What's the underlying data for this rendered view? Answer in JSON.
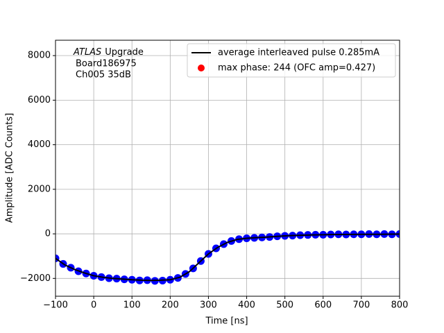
{
  "chart_data": {
    "type": "line",
    "xlabel": "Time [ns]",
    "ylabel": "Amplitude [ADC Counts]",
    "annotation": {
      "italic": "ATLAS",
      "lines": [
        "Upgrade",
        "Board186975",
        "Ch005 35dB"
      ]
    },
    "xlim": [
      -100,
      800
    ],
    "ylim": [
      -2800,
      8690
    ],
    "xticks": [
      {
        "value": -100,
        "label": "−100"
      },
      0,
      100,
      200,
      300,
      400,
      500,
      600,
      700,
      800
    ],
    "yticks": [
      {
        "value": -2000,
        "label": "−2000"
      },
      0,
      2000,
      4000,
      6000,
      8000
    ],
    "grid": true,
    "legend": "upper right",
    "samples": {
      "color": "#0000ff",
      "x": [
        -100,
        -80,
        -60,
        -40,
        -20,
        0,
        20,
        40,
        60,
        80,
        100,
        120,
        140,
        160,
        180,
        200,
        220,
        240,
        260,
        280,
        300,
        320,
        340,
        360,
        380,
        400,
        420,
        440,
        460,
        480,
        500,
        520,
        540,
        560,
        580,
        600,
        620,
        640,
        660,
        680,
        700,
        720,
        740,
        760,
        780,
        800
      ],
      "values": [
        -1100,
        -1350,
        -1520,
        -1680,
        -1780,
        -1880,
        -1940,
        -1990,
        -2010,
        -2040,
        -2060,
        -2090,
        -2080,
        -2110,
        -2100,
        -2060,
        -1980,
        -1800,
        -1550,
        -1220,
        -900,
        -650,
        -460,
        -320,
        -240,
        -200,
        -180,
        -160,
        -140,
        -110,
        -90,
        -80,
        -60,
        -50,
        -40,
        -40,
        -30,
        -20,
        -30,
        -20,
        -20,
        -10,
        -20,
        -10,
        -20,
        -10
      ]
    },
    "series": [
      {
        "name": "average interleaved pulse 0.285mA",
        "color": "#000000",
        "kind": "line",
        "x": [
          -100,
          -75,
          -50,
          -25,
          0,
          25,
          50,
          75,
          100,
          125,
          150,
          175,
          200,
          225,
          250,
          275,
          300,
          325,
          350,
          375,
          400,
          425,
          450,
          475,
          500,
          525,
          550,
          575,
          600,
          625,
          650,
          675,
          700,
          725,
          750,
          775,
          800
        ],
        "values": [
          -1100,
          -1400,
          -1600,
          -1750,
          -1880,
          -1950,
          -2000,
          -2030,
          -2060,
          -2080,
          -2090,
          -2080,
          -2060,
          -1950,
          -1700,
          -1300,
          -900,
          -600,
          -380,
          -250,
          -200,
          -170,
          -150,
          -120,
          -90,
          -70,
          -60,
          -50,
          -40,
          -30,
          -30,
          -25,
          -20,
          -20,
          -20,
          -15,
          -10
        ]
      },
      {
        "name": "max phase: 244 (OFC amp=0.427)",
        "color": "#ff0000",
        "kind": "point",
        "x": [],
        "values": []
      }
    ]
  }
}
